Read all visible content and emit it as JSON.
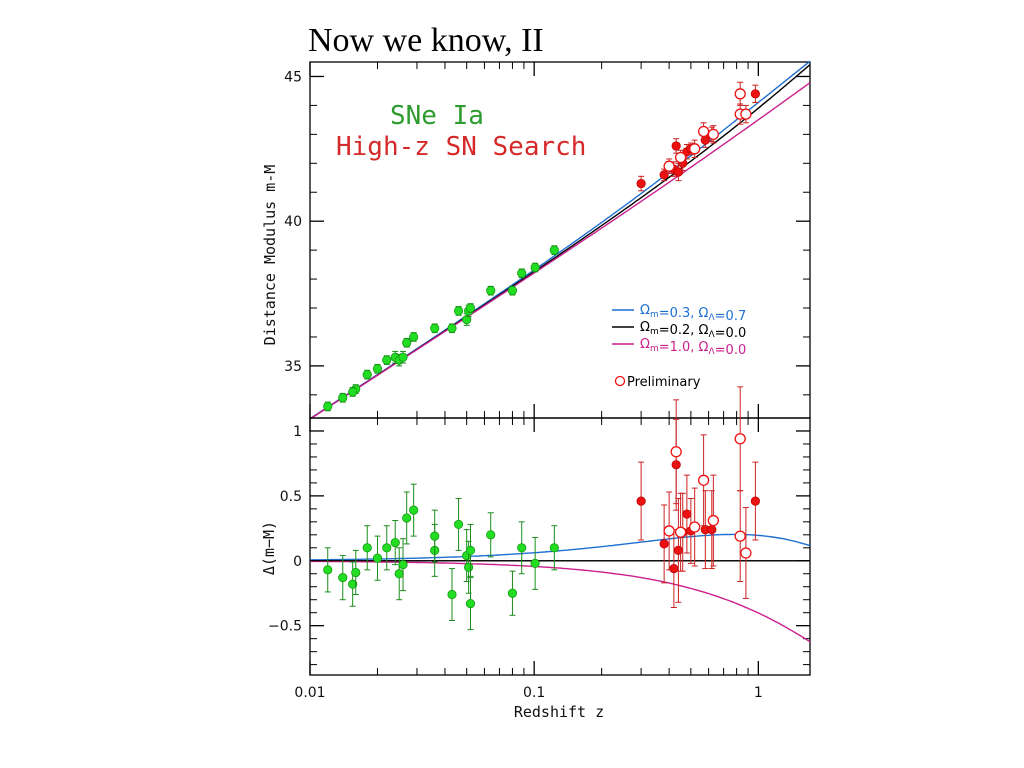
{
  "slide": {
    "title": "Now we know, II"
  },
  "colors": {
    "green": "#22dd22",
    "red": "#ee1111",
    "blue": "#1f6fd1",
    "black": "#000000",
    "magenta": "#cc1f8e",
    "sne_text": "#2e9b2e",
    "highz_text": "#d42a2a"
  },
  "chart_data": {
    "type": "scatter",
    "xlabel": "Redshift z",
    "xscale": "log",
    "xlim": [
      0.01,
      1.7
    ],
    "x_ticks": [
      "0.01",
      "0.1",
      "1"
    ],
    "annotations": [
      "SNe Ia",
      "High-z SN Search"
    ],
    "legend": {
      "placement": "lower-right",
      "entries": [
        {
          "label": "Ωm=0.3, ΩΛ=0.7",
          "om": "0.3",
          "ol": "0.7",
          "color": "#1f6fd1"
        },
        {
          "label": "Ωm=0.2, ΩΛ=0.0",
          "om": "0.2",
          "ol": "0.0",
          "color": "#000000"
        },
        {
          "label": "Ωm=1.0, ΩΛ=0.0",
          "om": "1.0",
          "ol": "0.0",
          "color": "#cc1f8e"
        }
      ],
      "marker_label": "Preliminary"
    },
    "top_panel": {
      "ylabel": "Distance Modulus m-M",
      "ylim": [
        33.2,
        45.5
      ],
      "y_ticks": [
        "35",
        "40",
        "45"
      ],
      "green_points": [
        {
          "z": 0.012,
          "y": 33.6,
          "err": 0.15
        },
        {
          "z": 0.014,
          "y": 33.9,
          "err": 0.15
        },
        {
          "z": 0.016,
          "y": 34.2,
          "err": 0.15
        },
        {
          "z": 0.0155,
          "y": 34.1,
          "err": 0.15
        },
        {
          "z": 0.018,
          "y": 34.7,
          "err": 0.15
        },
        {
          "z": 0.02,
          "y": 34.9,
          "err": 0.15
        },
        {
          "z": 0.022,
          "y": 35.2,
          "err": 0.15
        },
        {
          "z": 0.024,
          "y": 35.3,
          "err": 0.2
        },
        {
          "z": 0.025,
          "y": 35.2,
          "err": 0.2
        },
        {
          "z": 0.026,
          "y": 35.3,
          "err": 0.2
        },
        {
          "z": 0.027,
          "y": 35.8,
          "err": 0.15
        },
        {
          "z": 0.029,
          "y": 36.0,
          "err": 0.15
        },
        {
          "z": 0.036,
          "y": 36.3,
          "err": 0.15
        },
        {
          "z": 0.043,
          "y": 36.3,
          "err": 0.15
        },
        {
          "z": 0.046,
          "y": 36.9,
          "err": 0.15
        },
        {
          "z": 0.05,
          "y": 36.6,
          "err": 0.2
        },
        {
          "z": 0.051,
          "y": 36.9,
          "err": 0.2
        },
        {
          "z": 0.052,
          "y": 37.0,
          "err": 0.15
        },
        {
          "z": 0.064,
          "y": 37.6,
          "err": 0.15
        },
        {
          "z": 0.08,
          "y": 37.6,
          "err": 0.15
        },
        {
          "z": 0.088,
          "y": 38.2,
          "err": 0.15
        },
        {
          "z": 0.101,
          "y": 38.4,
          "err": 0.15
        },
        {
          "z": 0.123,
          "y": 39.0,
          "err": 0.15
        }
      ],
      "red_points": [
        {
          "z": 0.3,
          "y": 41.3,
          "err": 0.25
        },
        {
          "z": 0.38,
          "y": 41.6,
          "err": 0.2
        },
        {
          "z": 0.42,
          "y": 41.8,
          "err": 0.25
        },
        {
          "z": 0.43,
          "y": 42.6,
          "err": 0.25
        },
        {
          "z": 0.44,
          "y": 41.7,
          "err": 0.3
        },
        {
          "z": 0.46,
          "y": 42.0,
          "err": 0.25
        },
        {
          "z": 0.48,
          "y": 42.4,
          "err": 0.25
        },
        {
          "z": 0.5,
          "y": 42.5,
          "err": 0.2
        },
        {
          "z": 0.58,
          "y": 42.8,
          "err": 0.25
        },
        {
          "z": 0.62,
          "y": 43.0,
          "err": 0.25
        },
        {
          "z": 0.97,
          "y": 44.4,
          "err": 0.3
        }
      ],
      "preliminary_points": [
        {
          "z": 0.4,
          "y": 41.9,
          "err": 0.25
        },
        {
          "z": 0.45,
          "y": 42.2,
          "err": 0.25
        },
        {
          "z": 0.52,
          "y": 42.5,
          "err": 0.3
        },
        {
          "z": 0.57,
          "y": 43.1,
          "err": 0.3
        },
        {
          "z": 0.63,
          "y": 43.0,
          "err": 0.3
        },
        {
          "z": 0.83,
          "y": 43.7,
          "err": 0.35
        },
        {
          "z": 0.83,
          "y": 44.4,
          "err": 0.4
        },
        {
          "z": 0.88,
          "y": 43.7,
          "err": 0.3
        }
      ]
    },
    "bottom_panel": {
      "ylabel": "Δ(m−M)",
      "ylim": [
        -0.88,
        1.1
      ],
      "y_ticks": [
        "−0.5",
        "0",
        "0.5",
        "1"
      ],
      "green_points": [
        {
          "z": 0.012,
          "y": -0.07,
          "err": 0.17
        },
        {
          "z": 0.014,
          "y": -0.13,
          "err": 0.17
        },
        {
          "z": 0.0155,
          "y": -0.18,
          "err": 0.17
        },
        {
          "z": 0.016,
          "y": -0.09,
          "err": 0.17
        },
        {
          "z": 0.018,
          "y": 0.1,
          "err": 0.17
        },
        {
          "z": 0.02,
          "y": 0.02,
          "err": 0.17
        },
        {
          "z": 0.022,
          "y": 0.1,
          "err": 0.17
        },
        {
          "z": 0.024,
          "y": 0.14,
          "err": 0.17
        },
        {
          "z": 0.025,
          "y": -0.1,
          "err": 0.2
        },
        {
          "z": 0.026,
          "y": -0.03,
          "err": 0.2
        },
        {
          "z": 0.027,
          "y": 0.33,
          "err": 0.2
        },
        {
          "z": 0.029,
          "y": 0.39,
          "err": 0.2
        },
        {
          "z": 0.036,
          "y": 0.08,
          "err": 0.2
        },
        {
          "z": 0.036,
          "y": 0.19,
          "err": 0.2
        },
        {
          "z": 0.043,
          "y": -0.26,
          "err": 0.2
        },
        {
          "z": 0.046,
          "y": 0.28,
          "err": 0.2
        },
        {
          "z": 0.05,
          "y": 0.04,
          "err": 0.2
        },
        {
          "z": 0.051,
          "y": -0.05,
          "err": 0.2
        },
        {
          "z": 0.052,
          "y": -0.33,
          "err": 0.2
        },
        {
          "z": 0.052,
          "y": 0.08,
          "err": 0.2
        },
        {
          "z": 0.064,
          "y": 0.2,
          "err": 0.17
        },
        {
          "z": 0.08,
          "y": -0.25,
          "err": 0.17
        },
        {
          "z": 0.088,
          "y": 0.1,
          "err": 0.2
        },
        {
          "z": 0.101,
          "y": -0.02,
          "err": 0.2
        },
        {
          "z": 0.123,
          "y": 0.1,
          "err": 0.17
        }
      ],
      "red_points": [
        {
          "z": 0.3,
          "y": 0.46,
          "err": 0.3
        },
        {
          "z": 0.38,
          "y": 0.13,
          "err": 0.3
        },
        {
          "z": 0.42,
          "y": -0.06,
          "err": 0.3
        },
        {
          "z": 0.43,
          "y": 0.74,
          "err": 0.35
        },
        {
          "z": 0.44,
          "y": 0.08,
          "err": 0.4
        },
        {
          "z": 0.46,
          "y": 0.22,
          "err": 0.3
        },
        {
          "z": 0.48,
          "y": 0.36,
          "err": 0.3
        },
        {
          "z": 0.5,
          "y": 0.23,
          "err": 0.25
        },
        {
          "z": 0.58,
          "y": 0.24,
          "err": 0.3
        },
        {
          "z": 0.62,
          "y": 0.24,
          "err": 0.3
        },
        {
          "z": 0.97,
          "y": 0.46,
          "err": 0.3
        }
      ],
      "preliminary_points": [
        {
          "z": 0.4,
          "y": 0.23,
          "err": 0.3
        },
        {
          "z": 0.43,
          "y": 0.84,
          "err": 0.4
        },
        {
          "z": 0.45,
          "y": 0.22,
          "err": 0.3
        },
        {
          "z": 0.52,
          "y": 0.26,
          "err": 0.3
        },
        {
          "z": 0.57,
          "y": 0.62,
          "err": 0.35
        },
        {
          "z": 0.63,
          "y": 0.31,
          "err": 0.35
        },
        {
          "z": 0.83,
          "y": 0.94,
          "err": 0.4
        },
        {
          "z": 0.83,
          "y": 0.19,
          "err": 0.35
        },
        {
          "z": 0.88,
          "y": 0.06,
          "err": 0.35
        }
      ]
    },
    "models": [
      {
        "name": "Ωm=0.3, ΩΛ=0.7",
        "om": 0.3,
        "ol": 0.7,
        "color": "#1f6fd1"
      },
      {
        "name": "Ωm=0.2, ΩΛ=0.0",
        "om": 0.2,
        "ol": 0.0,
        "color": "#000000"
      },
      {
        "name": "Ωm=1.0, ΩΛ=0.0",
        "om": 1.0,
        "ol": 0.0,
        "color": "#cc1f8e"
      }
    ]
  }
}
